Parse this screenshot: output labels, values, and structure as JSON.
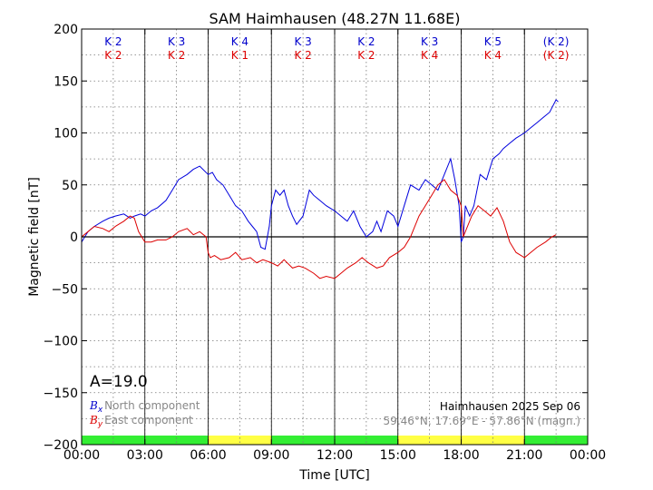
{
  "chart_data": {
    "type": "line",
    "title": "SAM Haimhausen (48.27N 11.68E)",
    "xlabel": "Time [UTC]",
    "ylabel": "Magnetic field [nT]",
    "xlim": [
      0,
      24
    ],
    "ylim": [
      -200,
      200
    ],
    "x_ticks": [
      0,
      3,
      6,
      9,
      12,
      15,
      18,
      21,
      24
    ],
    "x_tick_labels": [
      "00:00",
      "03:00",
      "06:00",
      "09:00",
      "12:00",
      "15:00",
      "18:00",
      "21:00",
      "00:00"
    ],
    "y_ticks": [
      200,
      150,
      100,
      50,
      0,
      -50,
      -100,
      -150,
      -200
    ],
    "y_tick_labels": [
      "200",
      "150",
      "100",
      "50",
      "0",
      "−50",
      "−100",
      "−150",
      "−200"
    ],
    "grid": true,
    "k_index": {
      "north": [
        "K 2",
        "K 3",
        "K 4",
        "K 3",
        "K 2",
        "K 3",
        "K 5",
        "(K 2)"
      ],
      "east": [
        "K 2",
        "K 2",
        "K 1",
        "K 2",
        "K 2",
        "K 4",
        "K 4",
        "(K 2)"
      ]
    },
    "activity_bar": {
      "colors": [
        "#33ee33",
        "#33ee33",
        "#ffff44",
        "#33ee33",
        "#33ee33",
        "#ffff44",
        "#ffff44",
        "#33ee33"
      ]
    },
    "a_index_label": "A=19.0",
    "station_label": "Haimhausen 2025 Sep 06",
    "coords_label": "59.46°N, 17.69°E - 57.86°N (magn.)",
    "legend": [
      {
        "symbol": "B",
        "sub": "x",
        "text": "North component",
        "color": "#0000cc"
      },
      {
        "symbol": "B",
        "sub": "y",
        "text": "East component",
        "color": "#dd0000"
      }
    ],
    "series": [
      {
        "key": "north",
        "color": "#0000dd",
        "x": [
          0,
          0.3,
          0.6,
          1,
          1.3,
          1.6,
          2,
          2.3,
          2.5,
          2.8,
          3,
          3.3,
          3.6,
          4,
          4.3,
          4.6,
          5,
          5.3,
          5.6,
          6,
          6.2,
          6.4,
          6.7,
          7,
          7.3,
          7.6,
          7.9,
          8.1,
          8.3,
          8.5,
          8.7,
          8.9,
          9,
          9.2,
          9.4,
          9.6,
          9.8,
          10,
          10.2,
          10.5,
          10.8,
          11,
          11.3,
          11.6,
          12,
          12.3,
          12.6,
          12.9,
          13.2,
          13.5,
          13.8,
          14,
          14.2,
          14.5,
          14.8,
          15,
          15.3,
          15.6,
          16,
          16.3,
          16.6,
          16.9,
          17.2,
          17.5,
          17.7,
          17.9,
          18,
          18.1,
          18.2,
          18.4,
          18.6,
          18.9,
          19.2,
          19.5,
          19.8,
          20,
          20.3,
          20.6,
          21,
          21.3,
          21.6,
          21.9,
          22.2,
          22.5,
          22.6
        ],
        "values": [
          -5,
          5,
          10,
          15,
          18,
          20,
          22,
          18,
          20,
          22,
          20,
          25,
          28,
          35,
          45,
          55,
          60,
          65,
          68,
          60,
          62,
          55,
          50,
          40,
          30,
          25,
          15,
          10,
          5,
          -10,
          -12,
          10,
          30,
          45,
          40,
          45,
          30,
          20,
          12,
          20,
          45,
          40,
          35,
          30,
          25,
          20,
          15,
          25,
          10,
          0,
          5,
          15,
          5,
          25,
          20,
          10,
          30,
          50,
          45,
          55,
          50,
          45,
          60,
          75,
          55,
          30,
          -5,
          0,
          30,
          20,
          30,
          60,
          55,
          75,
          80,
          85,
          90,
          95,
          100,
          105,
          110,
          115,
          120,
          132,
          130
        ]
      },
      {
        "key": "east",
        "color": "#dd0000",
        "x": [
          0,
          0.3,
          0.6,
          1,
          1.3,
          1.6,
          2,
          2.3,
          2.5,
          2.7,
          3,
          3.3,
          3.6,
          4,
          4.3,
          4.6,
          5,
          5.3,
          5.6,
          5.9,
          6,
          6.1,
          6.3,
          6.6,
          7,
          7.3,
          7.6,
          8,
          8.3,
          8.6,
          9,
          9.3,
          9.6,
          10,
          10.3,
          10.6,
          11,
          11.3,
          11.6,
          12,
          12.3,
          12.6,
          13,
          13.3,
          13.6,
          14,
          14.3,
          14.6,
          15,
          15.3,
          15.6,
          16,
          16.3,
          16.6,
          16.9,
          17.2,
          17.5,
          17.8,
          18,
          18.1,
          18.2,
          18.5,
          18.8,
          19.1,
          19.4,
          19.7,
          20,
          20.3,
          20.6,
          21,
          21.3,
          21.6,
          22,
          22.3,
          22.5
        ],
        "values": [
          0,
          5,
          10,
          8,
          5,
          10,
          15,
          20,
          18,
          5,
          -5,
          -5,
          -3,
          -3,
          0,
          5,
          8,
          2,
          5,
          0,
          -15,
          -20,
          -18,
          -22,
          -20,
          -15,
          -22,
          -20,
          -25,
          -22,
          -25,
          -28,
          -22,
          -30,
          -28,
          -30,
          -35,
          -40,
          -38,
          -40,
          -35,
          -30,
          -25,
          -20,
          -25,
          -30,
          -28,
          -20,
          -15,
          -10,
          0,
          20,
          30,
          40,
          50,
          55,
          45,
          40,
          30,
          0,
          5,
          20,
          30,
          25,
          20,
          28,
          15,
          -5,
          -15,
          -20,
          -15,
          -10,
          -5,
          0,
          2
        ]
      }
    ]
  }
}
